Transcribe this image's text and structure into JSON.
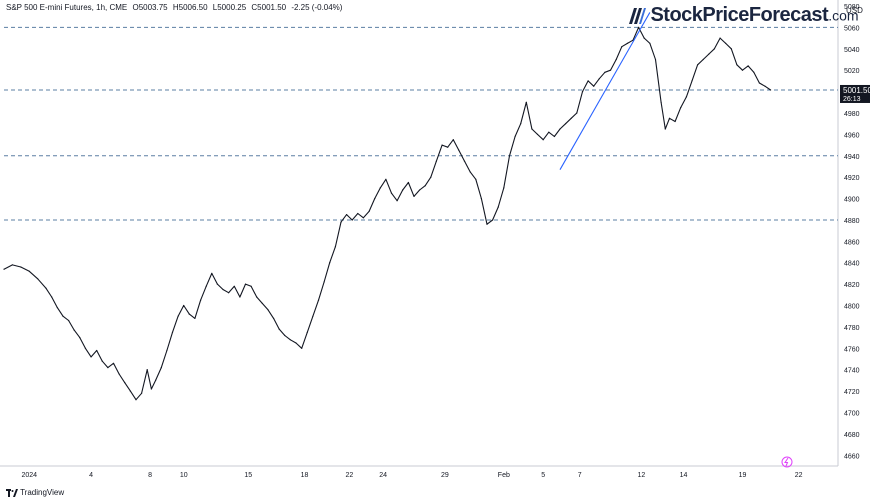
{
  "header": {
    "symbol": "S&P 500 E-mini Futures, 1h, CME",
    "open": "O5003.75",
    "high": "H5006.50",
    "low": "L5000.25",
    "close": "C5001.50",
    "change": "-2.25 (-0.04%)"
  },
  "logo": {
    "brand": "StockPriceForecast",
    "tld": ".com"
  },
  "footer": {
    "tradingview": "TradingView"
  },
  "colors": {
    "price": "#131722",
    "level": "#5b7fa3",
    "trend": "#2962ff",
    "axis_text": "#131722"
  },
  "chart_data": {
    "type": "line",
    "title": "",
    "currency": "USD",
    "ylim": [
      4650,
      5080
    ],
    "y_ticks": [
      4660,
      4680,
      4700,
      4720,
      4740,
      4760,
      4780,
      4800,
      4820,
      4840,
      4860,
      4880,
      4900,
      4920,
      4940,
      4960,
      4980,
      5000,
      5020,
      5040,
      5060,
      5080
    ],
    "x_ticks": [
      {
        "label": "2024",
        "t": 0.0
      },
      {
        "label": "4",
        "t": 2.2
      },
      {
        "label": "8",
        "t": 4.3
      },
      {
        "label": "10",
        "t": 5.5
      },
      {
        "label": "15",
        "t": 7.8
      },
      {
        "label": "18",
        "t": 9.8
      },
      {
        "label": "22",
        "t": 11.4
      },
      {
        "label": "24",
        "t": 12.6
      },
      {
        "label": "29",
        "t": 14.8
      },
      {
        "label": "Feb",
        "t": 16.9
      },
      {
        "label": "5",
        "t": 18.3
      },
      {
        "label": "7",
        "t": 19.6
      },
      {
        "label": "12",
        "t": 21.8
      },
      {
        "label": "14",
        "t": 23.3
      },
      {
        "label": "19",
        "t": 25.4
      },
      {
        "label": "22",
        "t": 27.4
      }
    ],
    "xlim": [
      -0.9,
      28.8
    ],
    "series": [
      {
        "values": [
          [
            -0.9,
            4834
          ],
          [
            -0.6,
            4838
          ],
          [
            -0.3,
            4836
          ],
          [
            0.0,
            4832
          ],
          [
            0.3,
            4825
          ],
          [
            0.6,
            4816
          ],
          [
            0.8,
            4808
          ],
          [
            1.0,
            4798
          ],
          [
            1.2,
            4790
          ],
          [
            1.4,
            4786
          ],
          [
            1.6,
            4777
          ],
          [
            1.8,
            4770
          ],
          [
            2.0,
            4760
          ],
          [
            2.2,
            4752
          ],
          [
            2.4,
            4758
          ],
          [
            2.6,
            4748
          ],
          [
            2.8,
            4742
          ],
          [
            3.0,
            4746
          ],
          [
            3.2,
            4736
          ],
          [
            3.4,
            4728
          ],
          [
            3.6,
            4720
          ],
          [
            3.8,
            4712
          ],
          [
            4.0,
            4718
          ],
          [
            4.2,
            4740
          ],
          [
            4.35,
            4722
          ],
          [
            4.5,
            4730
          ],
          [
            4.7,
            4742
          ],
          [
            4.9,
            4758
          ],
          [
            5.1,
            4775
          ],
          [
            5.3,
            4790
          ],
          [
            5.5,
            4800
          ],
          [
            5.7,
            4792
          ],
          [
            5.9,
            4788
          ],
          [
            6.1,
            4805
          ],
          [
            6.3,
            4818
          ],
          [
            6.5,
            4830
          ],
          [
            6.7,
            4820
          ],
          [
            6.9,
            4815
          ],
          [
            7.1,
            4812
          ],
          [
            7.3,
            4818
          ],
          [
            7.5,
            4808
          ],
          [
            7.7,
            4820
          ],
          [
            7.9,
            4818
          ],
          [
            8.1,
            4808
          ],
          [
            8.3,
            4802
          ],
          [
            8.5,
            4796
          ],
          [
            8.7,
            4788
          ],
          [
            8.9,
            4778
          ],
          [
            9.1,
            4772
          ],
          [
            9.3,
            4768
          ],
          [
            9.5,
            4765
          ],
          [
            9.7,
            4760
          ],
          [
            9.9,
            4775
          ],
          [
            10.1,
            4790
          ],
          [
            10.3,
            4805
          ],
          [
            10.5,
            4822
          ],
          [
            10.7,
            4840
          ],
          [
            10.9,
            4855
          ],
          [
            11.1,
            4878
          ],
          [
            11.3,
            4885
          ],
          [
            11.5,
            4880
          ],
          [
            11.7,
            4886
          ],
          [
            11.9,
            4882
          ],
          [
            12.1,
            4888
          ],
          [
            12.3,
            4900
          ],
          [
            12.5,
            4910
          ],
          [
            12.7,
            4918
          ],
          [
            12.9,
            4905
          ],
          [
            13.1,
            4898
          ],
          [
            13.3,
            4908
          ],
          [
            13.5,
            4915
          ],
          [
            13.7,
            4902
          ],
          [
            13.9,
            4908
          ],
          [
            14.1,
            4912
          ],
          [
            14.3,
            4920
          ],
          [
            14.5,
            4935
          ],
          [
            14.7,
            4950
          ],
          [
            14.9,
            4948
          ],
          [
            15.1,
            4955
          ],
          [
            15.3,
            4945
          ],
          [
            15.5,
            4935
          ],
          [
            15.7,
            4925
          ],
          [
            15.9,
            4918
          ],
          [
            16.1,
            4900
          ],
          [
            16.3,
            4876
          ],
          [
            16.5,
            4880
          ],
          [
            16.7,
            4892
          ],
          [
            16.9,
            4910
          ],
          [
            17.1,
            4940
          ],
          [
            17.3,
            4958
          ],
          [
            17.5,
            4970
          ],
          [
            17.7,
            4990
          ],
          [
            17.9,
            4965
          ],
          [
            18.1,
            4960
          ],
          [
            18.3,
            4955
          ],
          [
            18.5,
            4962
          ],
          [
            18.7,
            4958
          ],
          [
            18.9,
            4965
          ],
          [
            19.1,
            4970
          ],
          [
            19.3,
            4975
          ],
          [
            19.5,
            4980
          ],
          [
            19.7,
            5000
          ],
          [
            19.9,
            5010
          ],
          [
            20.1,
            5005
          ],
          [
            20.3,
            5012
          ],
          [
            20.5,
            5018
          ],
          [
            20.7,
            5020
          ],
          [
            20.9,
            5030
          ],
          [
            21.1,
            5042
          ],
          [
            21.3,
            5045
          ],
          [
            21.5,
            5048
          ],
          [
            21.7,
            5060
          ],
          [
            21.9,
            5050
          ],
          [
            22.1,
            5045
          ],
          [
            22.3,
            5030
          ],
          [
            22.5,
            4990
          ],
          [
            22.65,
            4965
          ],
          [
            22.8,
            4975
          ],
          [
            23.0,
            4972
          ],
          [
            23.2,
            4985
          ],
          [
            23.4,
            4995
          ],
          [
            23.6,
            5010
          ],
          [
            23.8,
            5025
          ],
          [
            24.0,
            5030
          ],
          [
            24.2,
            5035
          ],
          [
            24.4,
            5040
          ],
          [
            24.6,
            5050
          ],
          [
            24.8,
            5045
          ],
          [
            25.0,
            5040
          ],
          [
            25.2,
            5025
          ],
          [
            25.4,
            5020
          ],
          [
            25.6,
            5024
          ],
          [
            25.8,
            5018
          ],
          [
            26.0,
            5008
          ],
          [
            26.2,
            5005
          ],
          [
            26.4,
            5001.5
          ]
        ]
      }
    ],
    "levels": [
      5060,
      5001.5,
      4940,
      4880
    ],
    "trendline": [
      [
        18.9,
        4927
      ],
      [
        22.1,
        5074
      ]
    ],
    "last_price": "5001.50",
    "countdown": "26:13"
  }
}
